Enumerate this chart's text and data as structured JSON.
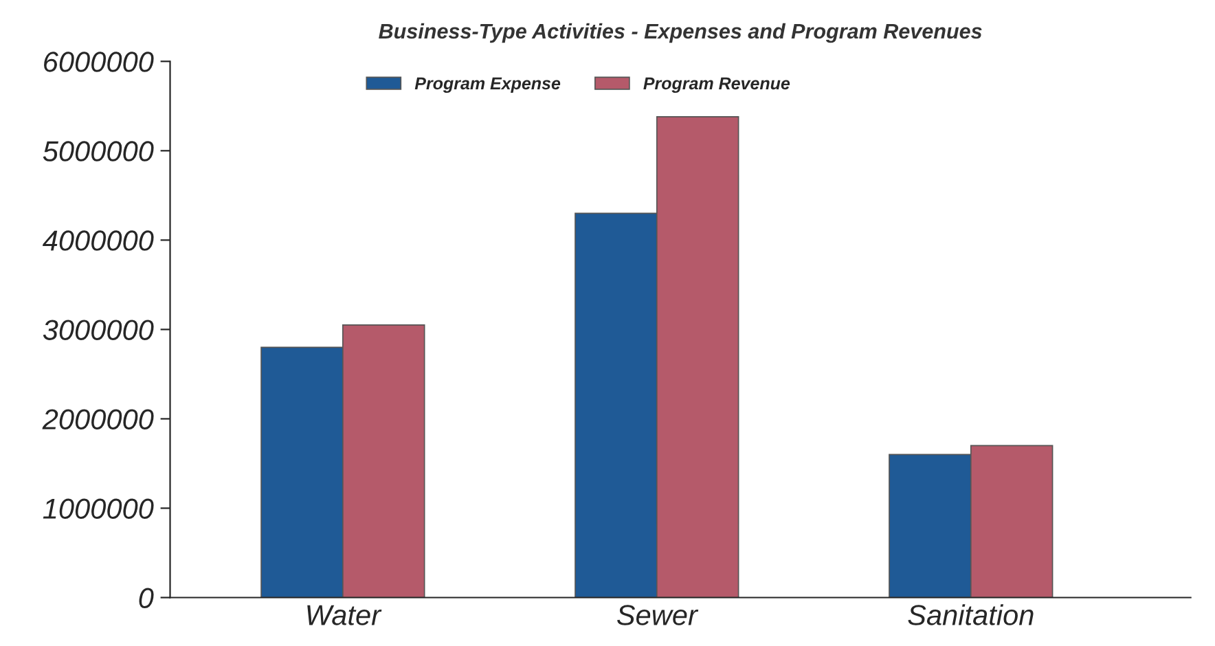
{
  "chart_data": {
    "type": "bar",
    "title": "Business-Type Activities - Expenses and Program Revenues",
    "categories": [
      "Water",
      "Sewer",
      "Sanitation"
    ],
    "series": [
      {
        "name": "Program Expense",
        "color": "#1f5a96",
        "values": [
          2800000,
          4300000,
          1600000
        ]
      },
      {
        "name": "Program Revenue",
        "color": "#b55a6a",
        "values": [
          3050000,
          5380000,
          1700000
        ]
      }
    ],
    "ylim": [
      0,
      6000000
    ],
    "yticks": [
      0,
      1000000,
      2000000,
      3000000,
      4000000,
      5000000,
      6000000
    ],
    "grid": false,
    "legend": "top"
  }
}
